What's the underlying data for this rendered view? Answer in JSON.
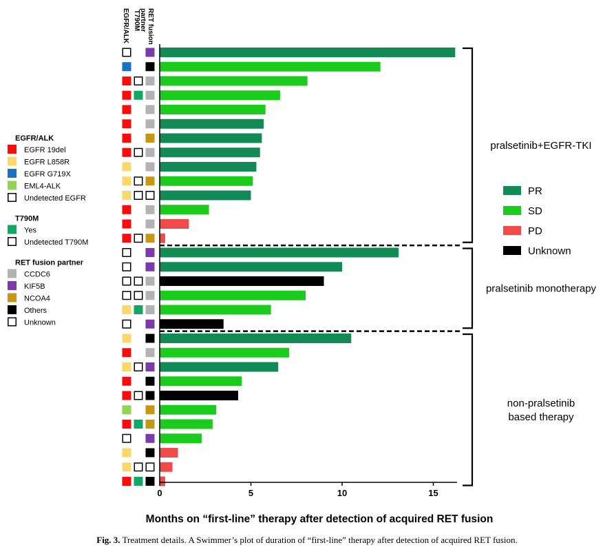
{
  "chart_data": {
    "type": "bar",
    "orientation": "horizontal",
    "subtype": "swimmer",
    "xlabel": "Months on “first-line” therapy after detection of acquired RET fusion",
    "xlim": [
      0,
      16.3
    ],
    "xticks": [
      0,
      5,
      10,
      15
    ],
    "annotation_column_headers": [
      "EGFR/ALK",
      "T790M",
      "RET fusion partner"
    ],
    "patients": [
      {
        "value": 16.2,
        "response": "PR",
        "egfr": "Undetected EGFR",
        "t790m": "",
        "ret": "KIF5B"
      },
      {
        "value": 12.1,
        "response": "SD",
        "egfr": "EGFR G719X",
        "t790m": "",
        "ret": "Others"
      },
      {
        "value": 8.1,
        "response": "SD",
        "egfr": "EGFR 19del",
        "t790m": "Undetected T790M",
        "ret": "CCDC6"
      },
      {
        "value": 6.6,
        "response": "SD",
        "egfr": "EGFR 19del",
        "t790m": "Yes",
        "ret": "CCDC6"
      },
      {
        "value": 5.8,
        "response": "SD",
        "egfr": "EGFR 19del",
        "t790m": "",
        "ret": "CCDC6"
      },
      {
        "value": 5.7,
        "response": "PR",
        "egfr": "EGFR 19del",
        "t790m": "",
        "ret": "CCDC6"
      },
      {
        "value": 5.6,
        "response": "PR",
        "egfr": "EGFR 19del",
        "t790m": "",
        "ret": "NCOA4"
      },
      {
        "value": 5.5,
        "response": "PR",
        "egfr": "EGFR 19del",
        "t790m": "Undetected T790M",
        "ret": "CCDC6"
      },
      {
        "value": 5.3,
        "response": "PR",
        "egfr": "EGFR L858R",
        "t790m": "",
        "ret": "CCDC6"
      },
      {
        "value": 5.1,
        "response": "SD",
        "egfr": "EGFR L858R",
        "t790m": "Undetected T790M",
        "ret": "NCOA4"
      },
      {
        "value": 5.0,
        "response": "PR",
        "egfr": "EGFR L858R",
        "t790m": "Undetected T790M",
        "ret": "Unknown"
      },
      {
        "value": 2.7,
        "response": "SD",
        "egfr": "EGFR 19del",
        "t790m": "",
        "ret": "CCDC6"
      },
      {
        "value": 1.6,
        "response": "PD",
        "egfr": "EGFR 19del",
        "t790m": "",
        "ret": "CCDC6"
      },
      {
        "value": 0.3,
        "response": "PD",
        "egfr": "EGFR 19del",
        "t790m": "Undetected T790M",
        "ret": "NCOA4"
      },
      {
        "value": 13.1,
        "response": "PR",
        "egfr": "Undetected EGFR",
        "t790m": "",
        "ret": "KIF5B"
      },
      {
        "value": 10.0,
        "response": "PR",
        "egfr": "Undetected EGFR",
        "t790m": "",
        "ret": "KIF5B"
      },
      {
        "value": 9.0,
        "response": "Unknown",
        "egfr": "Undetected EGFR",
        "t790m": "Undetected T790M",
        "ret": "CCDC6"
      },
      {
        "value": 8.0,
        "response": "SD",
        "egfr": "Undetected EGFR",
        "t790m": "Undetected T790M",
        "ret": "CCDC6"
      },
      {
        "value": 6.1,
        "response": "SD",
        "egfr": "EGFR L858R",
        "t790m": "Yes",
        "ret": "CCDC6"
      },
      {
        "value": 3.5,
        "response": "Unknown",
        "egfr": "Undetected EGFR",
        "t790m": "",
        "ret": "KIF5B"
      },
      {
        "value": 10.5,
        "response": "PR",
        "egfr": "EGFR L858R",
        "t790m": "",
        "ret": "Others"
      },
      {
        "value": 7.1,
        "response": "SD",
        "egfr": "EGFR 19del",
        "t790m": "",
        "ret": "CCDC6"
      },
      {
        "value": 6.5,
        "response": "PR",
        "egfr": "EGFR L858R",
        "t790m": "Undetected T790M",
        "ret": "KIF5B"
      },
      {
        "value": 4.5,
        "response": "SD",
        "egfr": "EGFR 19del",
        "t790m": "",
        "ret": "Others"
      },
      {
        "value": 4.3,
        "response": "Unknown",
        "egfr": "EGFR 19del",
        "t790m": "Undetected T790M",
        "ret": "Others"
      },
      {
        "value": 3.1,
        "response": "SD",
        "egfr": "EML4-ALK",
        "t790m": "",
        "ret": "NCOA4"
      },
      {
        "value": 2.9,
        "response": "SD",
        "egfr": "EGFR 19del",
        "t790m": "Yes",
        "ret": "NCOA4"
      },
      {
        "value": 2.3,
        "response": "SD",
        "egfr": "Undetected EGFR",
        "t790m": "",
        "ret": "KIF5B"
      },
      {
        "value": 1.0,
        "response": "PD",
        "egfr": "EGFR L858R",
        "t790m": "",
        "ret": "Others"
      },
      {
        "value": 0.7,
        "response": "PD",
        "egfr": "EGFR L858R",
        "t790m": "Undetected T790M",
        "ret": "Unknown"
      },
      {
        "value": 0.3,
        "response": "PD",
        "egfr": "EGFR 19del",
        "t790m": "Yes",
        "ret": "Others"
      }
    ],
    "groups": [
      {
        "label_lines": [
          "pralsetinib+EGFR-TKI"
        ],
        "start": 0,
        "end": 13
      },
      {
        "label_lines": [
          "pralsetinib monotherapy"
        ],
        "start": 14,
        "end": 19
      },
      {
        "label_lines": [
          "non-pralsetinib",
          "based therapy"
        ],
        "start": 20,
        "end": 30
      }
    ],
    "response_legend": [
      {
        "label": "PR",
        "color": "#128a55"
      },
      {
        "label": "SD",
        "color": "#1ccc1c"
      },
      {
        "label": "PD",
        "color": "#f04a4a"
      },
      {
        "label": "Unknown",
        "color": "#000000"
      }
    ],
    "annotation_legend": [
      {
        "title": "EGFR/ALK",
        "items": [
          {
            "label": "EGFR 19del",
            "color": "#ff0a0a"
          },
          {
            "label": "EGFR L858R",
            "color": "#fad96a"
          },
          {
            "label": "EGFR G719X",
            "color": "#1572c4"
          },
          {
            "label": "EML4-ALK",
            "color": "#8fd455"
          },
          {
            "label": "Undetected EGFR",
            "color": "none"
          }
        ]
      },
      {
        "title": "T790M",
        "items": [
          {
            "label": "Yes",
            "color": "#11a866"
          },
          {
            "label": "Undetected T790M",
            "color": "none"
          }
        ]
      },
      {
        "title": "RET fusion partner",
        "items": [
          {
            "label": "CCDC6",
            "color": "#b3b3b3"
          },
          {
            "label": "KIF5B",
            "color": "#7a3aa8"
          },
          {
            "label": "NCOA4",
            "color": "#c69712"
          },
          {
            "label": "Others",
            "color": "#000000"
          },
          {
            "label": "Unknown",
            "color": "none"
          }
        ]
      }
    ]
  },
  "column_headers": {
    "egfr": "EGFR/ALK",
    "t790m": "T790M",
    "ret_line1": "RET fusion",
    "ret_line2": "partner"
  },
  "caption": {
    "prefix": "Fig. 3.",
    "text": "Treatment details. A Swimmer’s plot of duration of “first-line” therapy after detection of acquired RET fusion."
  }
}
